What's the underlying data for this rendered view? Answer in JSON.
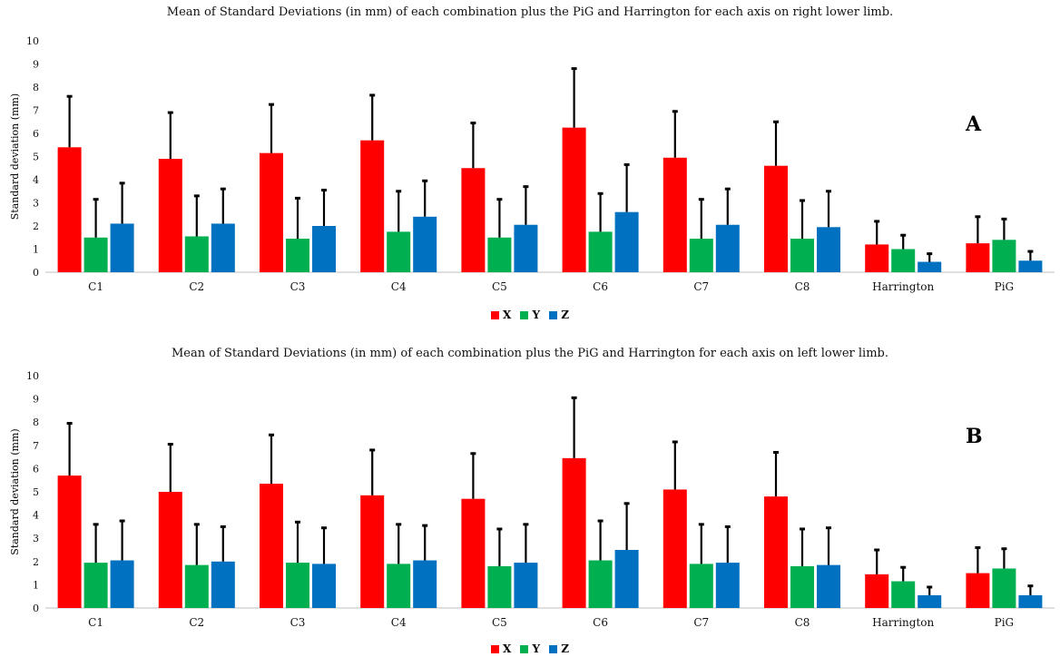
{
  "colors": {
    "X": "#ff0000",
    "Y": "#00b050",
    "Z": "#0070c0",
    "error": "#000000"
  },
  "chart_data": [
    {
      "type": "bar",
      "panel_label": "A",
      "title": "Mean of Standard Deviations (in mm) of each combination plus the PiG and Harrington for each axis on right lower limb.",
      "xlabel": "",
      "ylabel": "Standard deviation (mm)",
      "ylim": [
        0,
        10
      ],
      "yticks": [
        "0",
        "1",
        "2",
        "3",
        "4",
        "5",
        "6",
        "7",
        "8",
        "9",
        "10"
      ],
      "grid": false,
      "legend_position": "bottom",
      "categories": [
        "C1",
        "C2",
        "C3",
        "C4",
        "C5",
        "C6",
        "C7",
        "C8",
        "Harrington",
        "PiG"
      ],
      "series": [
        {
          "name": "X",
          "values": [
            5.4,
            4.9,
            5.15,
            5.7,
            4.5,
            6.25,
            4.95,
            4.6,
            1.2,
            1.25
          ],
          "error_top": [
            7.6,
            6.9,
            7.25,
            7.65,
            6.45,
            8.8,
            6.95,
            6.5,
            2.2,
            2.4
          ]
        },
        {
          "name": "Y",
          "values": [
            1.5,
            1.55,
            1.45,
            1.75,
            1.5,
            1.75,
            1.45,
            1.45,
            1.0,
            1.4
          ],
          "error_top": [
            3.15,
            3.3,
            3.2,
            3.5,
            3.15,
            3.4,
            3.15,
            3.1,
            1.6,
            2.3
          ]
        },
        {
          "name": "Z",
          "values": [
            2.1,
            2.1,
            2.0,
            2.4,
            2.05,
            2.6,
            2.05,
            1.95,
            0.45,
            0.5
          ],
          "error_top": [
            3.85,
            3.6,
            3.55,
            3.95,
            3.7,
            4.65,
            3.6,
            3.5,
            0.8,
            0.9
          ]
        }
      ]
    },
    {
      "type": "bar",
      "panel_label": "B",
      "title": "Mean of Standard Deviations (in mm) of each combination plus the PiG and Harrington for each axis on left lower limb.",
      "xlabel": "",
      "ylabel": "Standard deviation (mm)",
      "ylim": [
        0,
        10
      ],
      "yticks": [
        "0",
        "1",
        "2",
        "3",
        "4",
        "5",
        "6",
        "7",
        "8",
        "9",
        "10"
      ],
      "grid": false,
      "legend_position": "bottom",
      "categories": [
        "C1",
        "C2",
        "C3",
        "C4",
        "C5",
        "C6",
        "C7",
        "C8",
        "Harrington",
        "PiG"
      ],
      "series": [
        {
          "name": "X",
          "values": [
            5.7,
            5.0,
            5.35,
            4.85,
            4.7,
            6.45,
            5.1,
            4.8,
            1.45,
            1.5
          ],
          "error_top": [
            7.95,
            7.05,
            7.45,
            6.8,
            6.65,
            9.05,
            7.15,
            6.7,
            2.5,
            2.6
          ]
        },
        {
          "name": "Y",
          "values": [
            1.95,
            1.85,
            1.95,
            1.9,
            1.8,
            2.05,
            1.9,
            1.8,
            1.15,
            1.7
          ],
          "error_top": [
            3.6,
            3.6,
            3.7,
            3.6,
            3.4,
            3.75,
            3.6,
            3.4,
            1.75,
            2.55
          ]
        },
        {
          "name": "Z",
          "values": [
            2.05,
            2.0,
            1.9,
            2.05,
            1.95,
            2.5,
            1.95,
            1.85,
            0.55,
            0.55
          ],
          "error_top": [
            3.75,
            3.5,
            3.45,
            3.55,
            3.6,
            4.5,
            3.5,
            3.45,
            0.9,
            0.95
          ]
        }
      ]
    }
  ]
}
